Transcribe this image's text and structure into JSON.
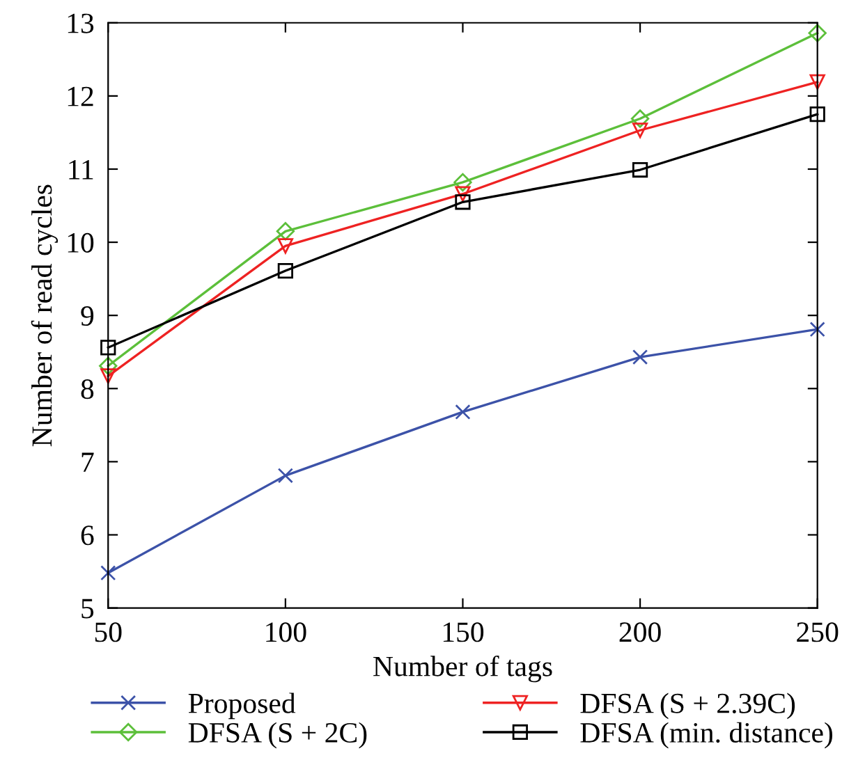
{
  "chart_data": {
    "type": "line",
    "xlabel": "Number of tags",
    "ylabel": "Number of read cycles",
    "x": [
      50,
      100,
      150,
      200,
      250
    ],
    "xlim": [
      50,
      250
    ],
    "xticks": [
      50,
      100,
      150,
      200,
      250
    ],
    "ylim": [
      5,
      13
    ],
    "yticks": [
      5,
      6,
      7,
      8,
      9,
      10,
      11,
      12,
      13
    ],
    "grid": false,
    "legend": "bottom",
    "line_style": "solid",
    "series": [
      {
        "name": "Proposed",
        "color": "#3c52a8",
        "marker": "cross",
        "values": [
          5.48,
          6.81,
          7.68,
          8.43,
          8.81
        ]
      },
      {
        "name": "DFSA (S + 2C)",
        "color": "#5cbf3a",
        "marker": "diamond",
        "values": [
          8.31,
          10.15,
          10.82,
          11.69,
          12.86
        ]
      },
      {
        "name": "DFSA (S + 2.39C)",
        "color": "#ee2222",
        "marker": "triangle",
        "values": [
          8.17,
          9.95,
          10.66,
          11.53,
          12.19
        ]
      },
      {
        "name": "DFSA (min. distance)",
        "color": "#000000",
        "marker": "square",
        "values": [
          8.56,
          9.61,
          10.55,
          10.99,
          11.75
        ]
      }
    ]
  }
}
